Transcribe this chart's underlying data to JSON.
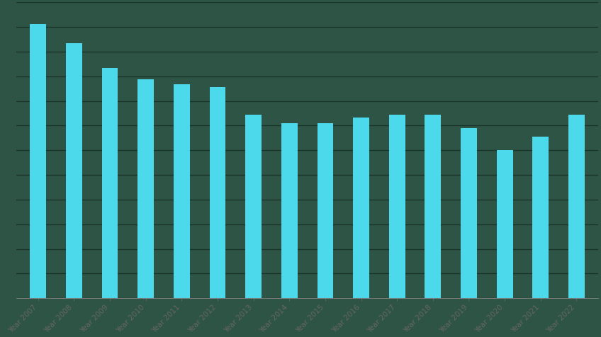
{
  "categories": [
    "Year 2007",
    "Year 2008",
    "Year 2009",
    "Year 2010",
    "Year 2011",
    "Year 2012",
    "Year 2013",
    "Year 2014",
    "Year 2015",
    "Year 2016",
    "Year 2017",
    "Year 2018",
    "Year 2019",
    "Year 2020",
    "Year 2021",
    "Year 2022"
  ],
  "values": [
    100,
    93,
    84,
    80,
    78,
    77,
    67,
    64,
    64,
    66,
    67,
    67,
    62,
    54,
    59,
    67
  ],
  "bar_color": "#4DD9EC",
  "background_color": "#2D5444",
  "grid_color": "#1a3328",
  "xlabel": "",
  "ylabel": "",
  "ylim": [
    0,
    108
  ],
  "bar_width": 0.45,
  "label_fontsize": 7.5,
  "label_rotation": 45,
  "label_color": "#666666",
  "num_gridlines": 12
}
